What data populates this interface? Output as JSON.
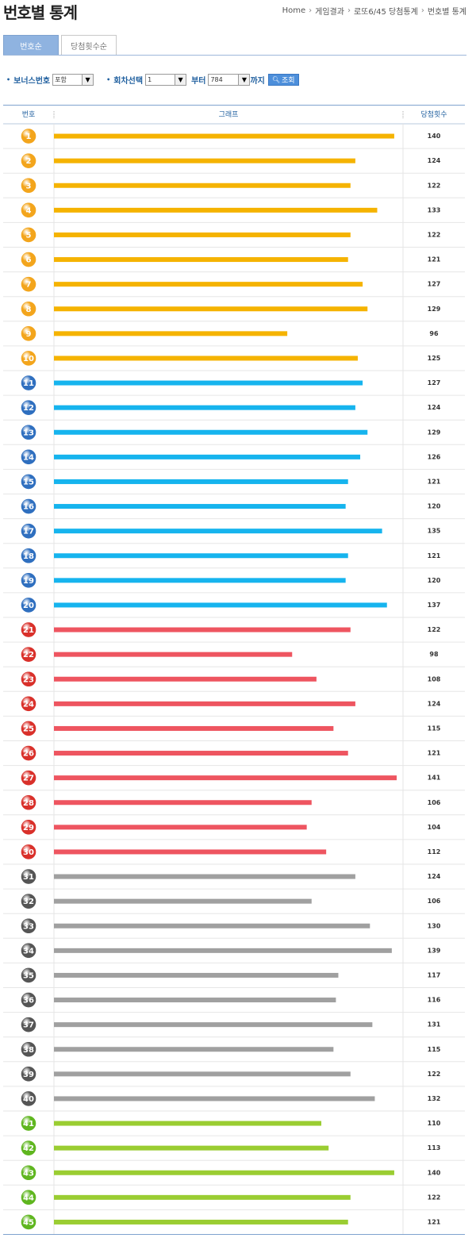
{
  "page": {
    "title": "번호별 통계"
  },
  "breadcrumb": [
    "Home",
    "게임결과",
    "로또6/45 당첨통계",
    "번호별 통계"
  ],
  "tabs": [
    {
      "label": "번호순",
      "active": true
    },
    {
      "label": "당첨횟수순",
      "active": false
    }
  ],
  "filter": {
    "bonus_label": "보너스번호",
    "bonus_value": "포함",
    "round_label": "회차선택",
    "round_from": "1",
    "from_label": "부터",
    "round_to": "784",
    "to_label": "까지",
    "search_button": "조회"
  },
  "chart_data": {
    "type": "bar",
    "orientation": "horizontal",
    "columns": [
      "번호",
      "그래프",
      "당첨횟수"
    ],
    "categories": [
      "1",
      "2",
      "3",
      "4",
      "5",
      "6",
      "7",
      "8",
      "9",
      "10",
      "11",
      "12",
      "13",
      "14",
      "15",
      "16",
      "17",
      "18",
      "19",
      "20",
      "21",
      "22",
      "23",
      "24",
      "25",
      "26",
      "27",
      "28",
      "29",
      "30",
      "31",
      "32",
      "33",
      "34",
      "35",
      "36",
      "37",
      "38",
      "39",
      "40",
      "41",
      "42",
      "43",
      "44",
      "45"
    ],
    "values": [
      140,
      124,
      122,
      133,
      122,
      121,
      127,
      129,
      96,
      125,
      127,
      124,
      129,
      126,
      121,
      120,
      135,
      121,
      120,
      137,
      122,
      98,
      108,
      124,
      115,
      121,
      141,
      106,
      104,
      112,
      124,
      106,
      130,
      139,
      117,
      116,
      131,
      115,
      122,
      132,
      110,
      113,
      140,
      122,
      121
    ],
    "color_groups": [
      {
        "range": [
          1,
          10
        ],
        "bar": "#f5b301",
        "ball": "#f3a51c"
      },
      {
        "range": [
          11,
          20
        ],
        "bar": "#16b4ee",
        "ball": "#2f6fbf"
      },
      {
        "range": [
          21,
          30
        ],
        "bar": "#ee5560",
        "ball": "#d9302a"
      },
      {
        "range": [
          31,
          40
        ],
        "bar": "#a0a0a0",
        "ball": "#555555"
      },
      {
        "range": [
          41,
          45
        ],
        "bar": "#9acd32",
        "ball": "#5fb61f"
      }
    ],
    "xlim": [
      0,
      141
    ],
    "grid": false
  }
}
